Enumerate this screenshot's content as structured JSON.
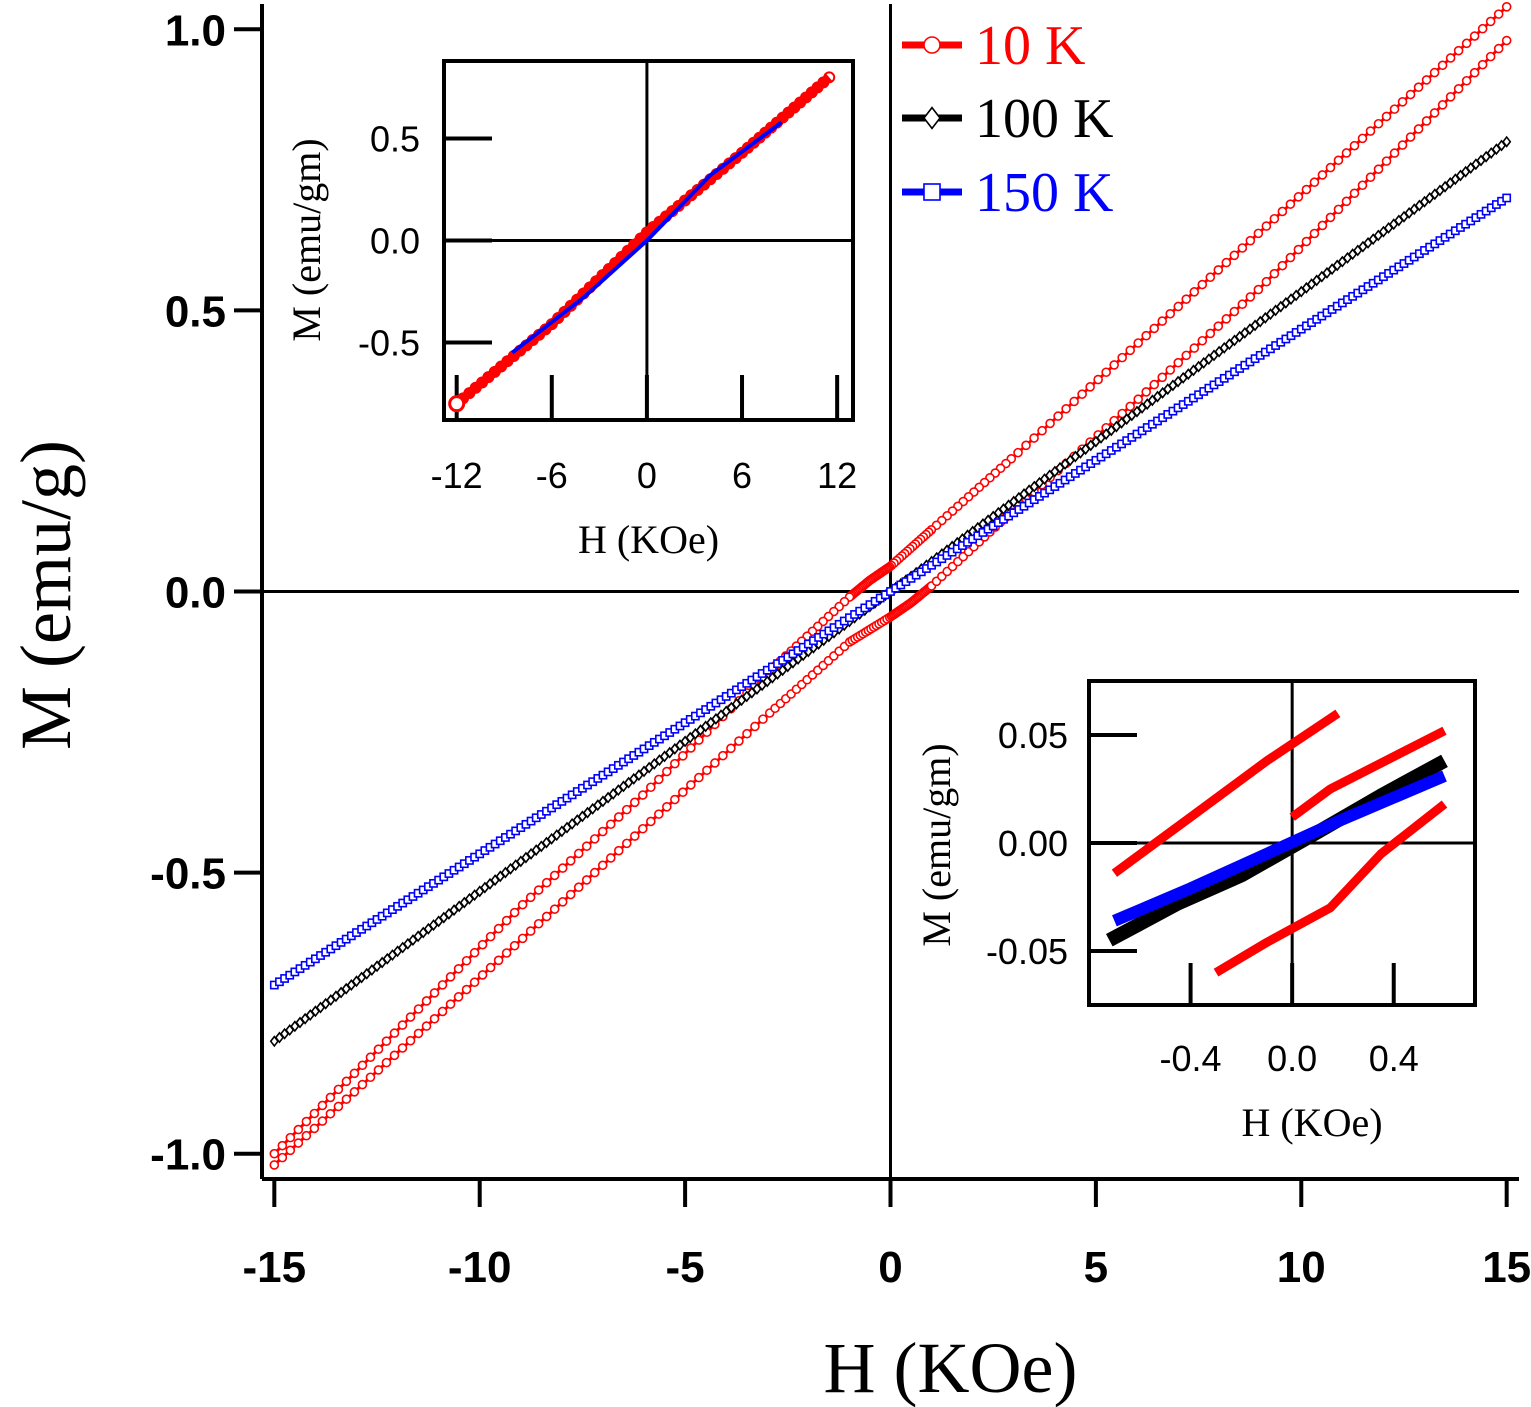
{
  "chart_data": [
    {
      "type": "line",
      "title": "",
      "xlabel": "H (KOe)",
      "ylabel": "M (emu/g)",
      "xlim": [
        -15.3,
        15.3
      ],
      "ylim": [
        -1.045,
        1.045
      ],
      "xticks": [
        -15,
        -10,
        -5,
        0,
        5,
        10,
        15
      ],
      "xtick_labels": [
        "-15",
        "-10",
        "-5",
        "0",
        "5",
        "10",
        "15"
      ],
      "yticks": [
        -1.0,
        -0.5,
        0.0,
        0.5,
        1.0
      ],
      "ytick_labels": [
        "-1.0",
        "-0.5",
        "0.0",
        "0.5",
        "1.0"
      ],
      "grid": "zero lines",
      "legend": "top-right",
      "series": [
        {
          "name": "10 K",
          "color": "#ff0000",
          "marker": "circle",
          "branches": [
            {
              "x": [
                15,
                12,
                9,
                6,
                3,
                1,
                0,
                -0.5,
                -1,
                -3,
                -6,
                -9,
                -12,
                -15
              ],
              "y": [
                1.04,
                0.84,
                0.64,
                0.44,
                0.24,
                0.11,
                0.045,
                0.02,
                -0.01,
                -0.145,
                -0.36,
                -0.56,
                -0.78,
                -1.0
              ]
            },
            {
              "x": [
                -15,
                -12,
                -9,
                -6,
                -3,
                -1,
                0,
                0.5,
                1,
                3,
                6,
                9,
                12,
                15
              ],
              "y": [
                -1.02,
                -0.82,
                -0.62,
                -0.42,
                -0.22,
                -0.09,
                -0.045,
                -0.02,
                0.01,
                0.145,
                0.34,
                0.54,
                0.76,
                0.98
              ]
            }
          ]
        },
        {
          "name": "100 K",
          "color": "#000000",
          "marker": "diamond",
          "branches": [
            {
              "x": [
                -15,
                -12,
                -9,
                -6,
                -3,
                0,
                3,
                6,
                9,
                12,
                15
              ],
              "y": [
                -0.8,
                -0.64,
                -0.48,
                -0.32,
                -0.16,
                0.0,
                0.16,
                0.32,
                0.48,
                0.64,
                0.8
              ]
            }
          ]
        },
        {
          "name": "150 K",
          "color": "#0000ff",
          "marker": "square",
          "branches": [
            {
              "x": [
                -15,
                -12,
                -9,
                -6,
                -3,
                0,
                3,
                6,
                9,
                12,
                15
              ],
              "y": [
                -0.7,
                -0.56,
                -0.42,
                -0.28,
                -0.14,
                0.0,
                0.14,
                0.28,
                0.42,
                0.56,
                0.7
              ]
            }
          ]
        }
      ]
    },
    {
      "type": "line",
      "title": "",
      "xlabel": "H (KOe)",
      "ylabel": "M (emu/gm)",
      "xlim": [
        -12.8,
        13
      ],
      "ylim": [
        -0.88,
        0.88
      ],
      "xticks": [
        -12,
        -6,
        0,
        6,
        12
      ],
      "xtick_labels": [
        "-12",
        "-6",
        "0",
        "6",
        "12"
      ],
      "yticks": [
        -0.5,
        0.0,
        0.5
      ],
      "ytick_labels": [
        "-0.5",
        "0.0",
        "0.5"
      ],
      "series": [
        {
          "name": "",
          "color": "#ff0000",
          "x": [
            -12,
            -6,
            0,
            6,
            11.5
          ],
          "y": [
            -0.8,
            -0.41,
            0.04,
            0.43,
            0.8
          ]
        },
        {
          "name": "",
          "color": "#0000ff",
          "x": [
            -8.5,
            -4,
            0,
            4,
            8.5
          ],
          "y": [
            -0.55,
            -0.28,
            0.0,
            0.32,
            0.58
          ]
        }
      ]
    },
    {
      "type": "line",
      "title": "",
      "xlabel": "H (KOe)",
      "ylabel": "M (emu/gm)",
      "xlim": [
        -0.8,
        0.72
      ],
      "ylim": [
        -0.075,
        0.075
      ],
      "xticks": [
        -0.4,
        0.0,
        0.4
      ],
      "xtick_labels": [
        "-0.4",
        "0.0",
        "0.4"
      ],
      "yticks": [
        -0.05,
        0.0,
        0.05
      ],
      "ytick_labels": [
        "-0.05",
        "0.00",
        "0.05"
      ],
      "series": [
        {
          "name": "",
          "color": "#ff0000",
          "x": [
            -0.7,
            -0.4,
            -0.1,
            0.18
          ],
          "y": [
            -0.014,
            0.012,
            0.038,
            0.06
          ]
        },
        {
          "name": "",
          "color": "#ff0000",
          "x": [
            0.0,
            0.15,
            0.6
          ],
          "y": [
            0.012,
            0.025,
            0.052
          ]
        },
        {
          "name": "",
          "color": "#ff0000",
          "x": [
            -0.3,
            -0.1,
            0.15,
            0.35,
            0.6
          ],
          "y": [
            -0.06,
            -0.046,
            -0.03,
            -0.005,
            0.018
          ]
        },
        {
          "name": "",
          "color": "#000000",
          "x": [
            -0.72,
            -0.45,
            -0.2,
            0.1,
            0.35,
            0.6
          ],
          "y": [
            -0.045,
            -0.028,
            -0.015,
            0.005,
            0.022,
            0.038
          ]
        },
        {
          "name": "",
          "color": "#0000ff",
          "x": [
            -0.7,
            -0.4,
            -0.1,
            0.2,
            0.6
          ],
          "y": [
            -0.036,
            -0.021,
            -0.005,
            0.011,
            0.031
          ]
        }
      ]
    }
  ]
}
